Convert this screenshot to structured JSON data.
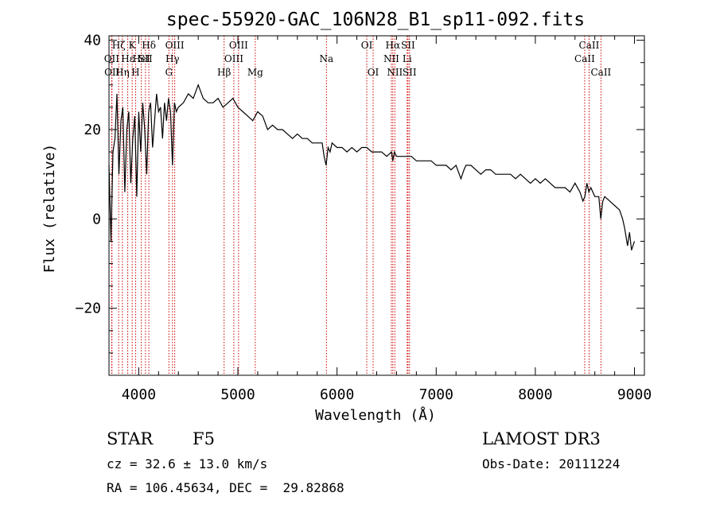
{
  "chart_data": {
    "type": "line",
    "title": "spec-55920-GAC_106N28_B1_sp11-092.fits",
    "xlabel": "Wavelength (Å)",
    "ylabel": "Flux (relative)",
    "xlim": [
      3700,
      9100
    ],
    "ylim": [
      -35,
      41
    ],
    "xticks": [
      4000,
      5000,
      6000,
      7000,
      8000,
      9000
    ],
    "yticks": [
      -20,
      0,
      20,
      40
    ],
    "grid": false,
    "series": [
      {
        "color": "#000000",
        "x": [
          3700,
          3720,
          3740,
          3760,
          3780,
          3800,
          3820,
          3840,
          3860,
          3880,
          3900,
          3920,
          3940,
          3960,
          3980,
          4000,
          4020,
          4040,
          4060,
          4080,
          4100,
          4120,
          4140,
          4160,
          4180,
          4200,
          4220,
          4240,
          4260,
          4280,
          4300,
          4320,
          4340,
          4360,
          4380,
          4400,
          4450,
          4500,
          4550,
          4600,
          4650,
          4700,
          4750,
          4800,
          4850,
          4900,
          4950,
          5000,
          5050,
          5100,
          5150,
          5200,
          5250,
          5300,
          5350,
          5400,
          5450,
          5500,
          5550,
          5600,
          5650,
          5700,
          5750,
          5800,
          5850,
          5870,
          5890,
          5910,
          5930,
          5950,
          6000,
          6050,
          6100,
          6150,
          6200,
          6250,
          6300,
          6350,
          6400,
          6450,
          6500,
          6550,
          6563,
          6580,
          6600,
          6650,
          6700,
          6750,
          6800,
          6850,
          6900,
          6950,
          7000,
          7050,
          7100,
          7150,
          7200,
          7250,
          7280,
          7300,
          7350,
          7400,
          7450,
          7500,
          7550,
          7600,
          7650,
          7700,
          7750,
          7800,
          7850,
          7900,
          7950,
          8000,
          8050,
          8100,
          8150,
          8200,
          8250,
          8300,
          8350,
          8400,
          8450,
          8480,
          8500,
          8520,
          8540,
          8560,
          8600,
          8640,
          8660,
          8680,
          8700,
          8750,
          8800,
          8850,
          8880,
          8900,
          8930,
          8950,
          8970,
          9000
        ],
        "values": [
          12,
          -5,
          15,
          18,
          28,
          10,
          22,
          25,
          6,
          20,
          24,
          8,
          18,
          23,
          5,
          24,
          15,
          26,
          20,
          10,
          24,
          26,
          16,
          22,
          28,
          24,
          25,
          18,
          26,
          22,
          27,
          24,
          12,
          26,
          24,
          25,
          26,
          28,
          27,
          30,
          27,
          26,
          26,
          27,
          25,
          26,
          27,
          25,
          24,
          23,
          22,
          24,
          23,
          20,
          21,
          20,
          20,
          19,
          18,
          19,
          18,
          18,
          17,
          17,
          17,
          14,
          12,
          16,
          15,
          17,
          16,
          16,
          15,
          16,
          15,
          16,
          16,
          15,
          15,
          15,
          14,
          15,
          13,
          15,
          14,
          14,
          14,
          14,
          13,
          13,
          13,
          13,
          12,
          12,
          12,
          11,
          12,
          9,
          11,
          12,
          12,
          11,
          10,
          11,
          11,
          10,
          10,
          10,
          10,
          9,
          10,
          9,
          8,
          9,
          8,
          9,
          8,
          7,
          7,
          7,
          6,
          8,
          6,
          4,
          5,
          8,
          6,
          7,
          5,
          5,
          0,
          4,
          5,
          4,
          3,
          2,
          0,
          -2,
          -6,
          -3,
          -7,
          -5
        ]
      }
    ],
    "line_markers": [
      {
        "wavelength": 3798,
        "labels": [
          "Hζ"
        ],
        "row": 0
      },
      {
        "wavelength": 3835,
        "labels": [
          "Hη"
        ],
        "row": 2
      },
      {
        "wavelength": 3889,
        "labels": [
          "Hε"
        ],
        "row": 1
      },
      {
        "wavelength": 3934,
        "labels": [
          "K"
        ],
        "row": 0
      },
      {
        "wavelength": 3968,
        "labels": [
          "H"
        ],
        "row": 2
      },
      {
        "wavelength": 4026,
        "labels": [
          "HeI"
        ],
        "row": 1
      },
      {
        "wavelength": 4068,
        "labels": [
          "SII"
        ],
        "row": 1
      },
      {
        "wavelength": 4102,
        "labels": [
          "Hδ"
        ],
        "row": 0
      },
      {
        "wavelength": 3727,
        "labels": [
          "OII"
        ],
        "row": 1
      },
      {
        "wavelength": 3730,
        "labels": [
          "OII"
        ],
        "row": 2
      },
      {
        "wavelength": 4304,
        "labels": [
          "G"
        ],
        "row": 2
      },
      {
        "wavelength": 4340,
        "labels": [
          "Hγ"
        ],
        "row": 1
      },
      {
        "wavelength": 4363,
        "labels": [
          "OIII"
        ],
        "row": 0
      },
      {
        "wavelength": 4861,
        "labels": [
          "Hβ"
        ],
        "row": 2
      },
      {
        "wavelength": 4959,
        "labels": [
          "OIII"
        ],
        "row": 1
      },
      {
        "wavelength": 5007,
        "labels": [
          "OIII"
        ],
        "row": 0
      },
      {
        "wavelength": 5175,
        "labels": [
          "Mg"
        ],
        "row": 2
      },
      {
        "wavelength": 5893,
        "labels": [
          "Na"
        ],
        "row": 1
      },
      {
        "wavelength": 6300,
        "labels": [
          "OI"
        ],
        "row": 0
      },
      {
        "wavelength": 6364,
        "labels": [
          "OI"
        ],
        "row": 2
      },
      {
        "wavelength": 6548,
        "labels": [
          "NII"
        ],
        "row": 1
      },
      {
        "wavelength": 6563,
        "labels": [
          "Hα"
        ],
        "row": 0
      },
      {
        "wavelength": 6583,
        "labels": [
          "NII"
        ],
        "row": 2
      },
      {
        "wavelength": 6707,
        "labels": [
          "Li"
        ],
        "row": 1
      },
      {
        "wavelength": 6716,
        "labels": [
          "SII"
        ],
        "row": 0
      },
      {
        "wavelength": 6731,
        "labels": [
          "SII"
        ],
        "row": 2
      },
      {
        "wavelength": 8498,
        "labels": [
          "CaII"
        ],
        "row": 1
      },
      {
        "wavelength": 8542,
        "labels": [
          "CaII"
        ],
        "row": 0
      },
      {
        "wavelength": 8662,
        "labels": [
          "CaII"
        ],
        "row": 2
      }
    ],
    "marker_color": "#cc0000"
  },
  "info": {
    "object_class": "STAR",
    "subclass": "F5",
    "survey": "LAMOST DR3",
    "cz": "cz = 32.6 ± 13.0 km/s",
    "obs_date": "Obs-Date: 20111224",
    "coords": "RA = 106.45634, DEC =  29.82868"
  }
}
